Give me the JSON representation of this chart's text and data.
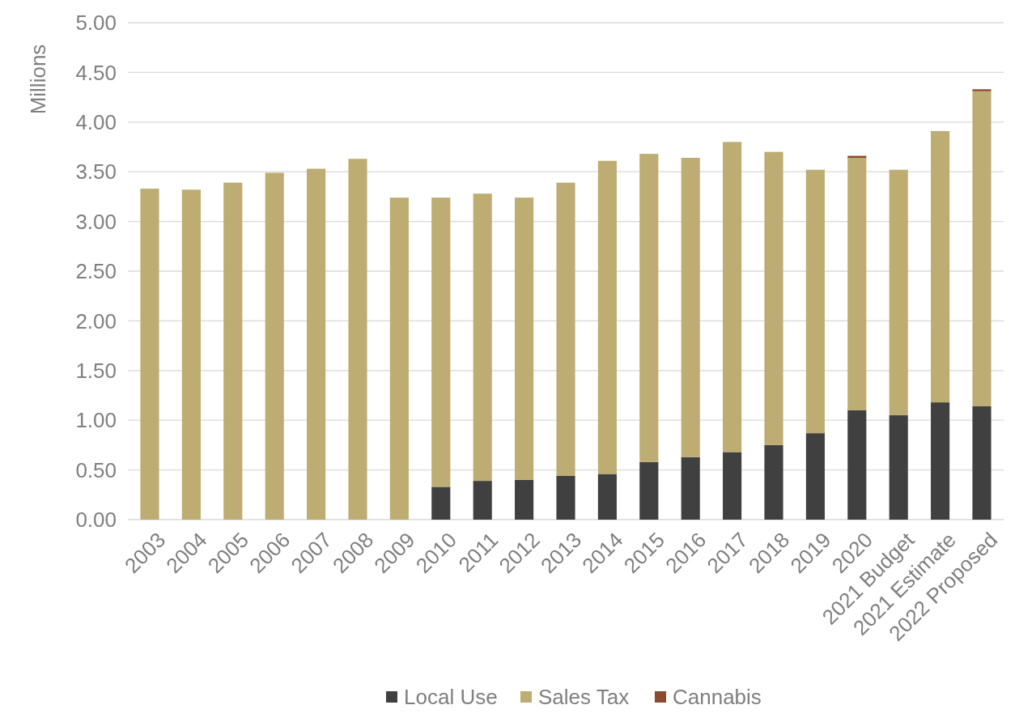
{
  "chart_data": {
    "type": "bar",
    "stacked": true,
    "ylabel": "Millions",
    "categories": [
      "2003",
      "2004",
      "2005",
      "2006",
      "2007",
      "2008",
      "2009",
      "2010",
      "2011",
      "2012",
      "2013",
      "2014",
      "2015",
      "2016",
      "2017",
      "2018",
      "2019",
      "2020",
      "2021 Budget",
      "2021 Estimate",
      "2022 Proposed"
    ],
    "series": [
      {
        "name": "Local Use",
        "color": "#404040",
        "values": [
          null,
          null,
          null,
          null,
          null,
          null,
          null,
          0.33,
          0.39,
          0.4,
          0.44,
          0.46,
          0.58,
          0.63,
          0.68,
          0.75,
          0.87,
          1.1,
          1.05,
          1.18,
          1.14
        ]
      },
      {
        "name": "Sales Tax",
        "color": "#bdad72",
        "values": [
          3.33,
          3.32,
          3.39,
          3.49,
          3.53,
          3.63,
          3.24,
          2.91,
          2.89,
          2.84,
          2.95,
          3.15,
          3.1,
          3.01,
          3.12,
          2.95,
          2.65,
          2.54,
          2.47,
          2.73,
          3.17
        ]
      },
      {
        "name": "Cannabis",
        "color": "#8b4a2e",
        "values": [
          null,
          null,
          null,
          null,
          null,
          null,
          null,
          null,
          null,
          null,
          null,
          null,
          null,
          null,
          null,
          null,
          null,
          0.02,
          null,
          null,
          0.02
        ]
      }
    ],
    "ylim": [
      0,
      5
    ],
    "yticks": [
      {
        "value": 0,
        "label": "0.00"
      },
      {
        "value": 0.5,
        "label": "0.50"
      },
      {
        "value": 1,
        "label": "1.00"
      },
      {
        "value": 1.5,
        "label": "1.50"
      },
      {
        "value": 2,
        "label": "2.00"
      },
      {
        "value": 2.5,
        "label": "2.50"
      },
      {
        "value": 3,
        "label": "3.00"
      },
      {
        "value": 3.5,
        "label": "3.50"
      },
      {
        "value": 4,
        "label": "4.00"
      },
      {
        "value": 4.5,
        "label": "4.50"
      },
      {
        "value": 5,
        "label": "5.00"
      }
    ],
    "grid": "y",
    "legend": "bottom"
  }
}
